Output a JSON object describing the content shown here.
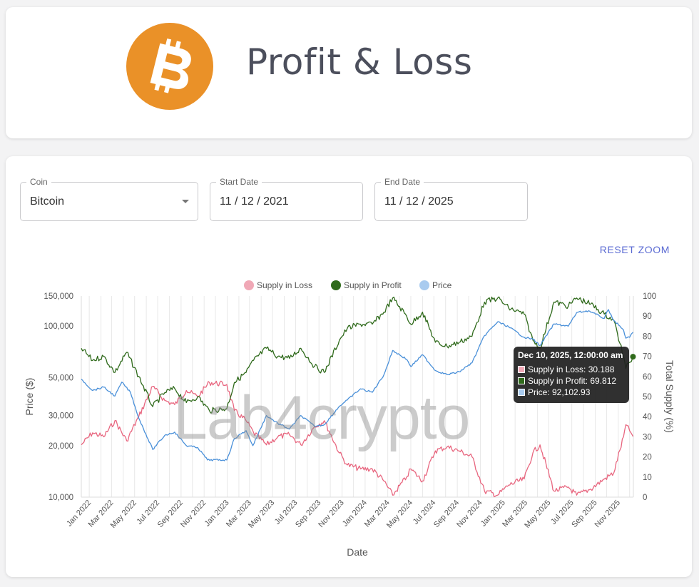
{
  "header": {
    "title": "Profit & Loss",
    "logo_icon": "bitcoin-logo-icon",
    "logo_color": "#ea9128"
  },
  "filters": {
    "coin": {
      "label": "Coin",
      "value": "Bitcoin",
      "icon": "dropdown-arrow-icon"
    },
    "start_date": {
      "label": "Start Date",
      "value": "11 / 12 / 2021"
    },
    "end_date": {
      "label": "End Date",
      "value": "11 / 12 / 2025"
    }
  },
  "reset_zoom_label": "RESET ZOOM",
  "watermark": "Lab4crypto",
  "tooltip": {
    "title": "Dec 10, 2025, 12:00:00 am",
    "rows": [
      "Supply in Loss: 30.188",
      "Supply in Profit: 69.812",
      "Price: 92,102.93"
    ]
  },
  "chart_data": {
    "type": "line",
    "xlabel": "Date",
    "ylabel_left": "Price ($)",
    "ylabel_right": "Total Supply (%)",
    "x_ticks": [
      "Jan 2022",
      "Mar 2022",
      "May 2022",
      "Jul 2022",
      "Sep 2022",
      "Nov 2022",
      "Jan 2023",
      "Mar 2023",
      "May 2023",
      "Jul 2023",
      "Sep 2023",
      "Nov 2023",
      "Jan 2024",
      "Mar 2024",
      "May 2024",
      "Jul 2024",
      "Sep 2024",
      "Nov 2024",
      "Jan 2025",
      "Mar 2025",
      "May 2025",
      "Jul 2025",
      "Sep 2025",
      "Nov 2025"
    ],
    "x_range": [
      "2021-12-11",
      "2025-12-11"
    ],
    "y_left_scale": "log",
    "y_left_range": [
      10000,
      150000
    ],
    "y_left_ticks": [
      {
        "v": 10000,
        "label": "10,000"
      },
      {
        "v": 20000,
        "label": "20,000"
      },
      {
        "v": 30000,
        "label": "30,000"
      },
      {
        "v": 50000,
        "label": "50,000"
      },
      {
        "v": 100000,
        "label": "100,000"
      },
      {
        "v": 150000,
        "label": "150,000"
      }
    ],
    "y_right_range": [
      0,
      100
    ],
    "y_right_ticks": [
      0,
      10,
      20,
      30,
      40,
      50,
      60,
      70,
      80,
      90,
      100
    ],
    "legend_position": "top",
    "grid": "vertical",
    "series": [
      {
        "name": "Supply in Loss",
        "color": "#e8667f",
        "legend_color": "#f0a8b6",
        "axis": "right",
        "points": [
          [
            "2021-12-11",
            26
          ],
          [
            "2022-01-10",
            32
          ],
          [
            "2022-02-08",
            30
          ],
          [
            "2022-03-10",
            38
          ],
          [
            "2022-04-10",
            28
          ],
          [
            "2022-05-12",
            40
          ],
          [
            "2022-06-18",
            55
          ],
          [
            "2022-07-20",
            48
          ],
          [
            "2022-08-15",
            46
          ],
          [
            "2022-09-15",
            53
          ],
          [
            "2022-10-15",
            50
          ],
          [
            "2022-11-15",
            57
          ],
          [
            "2022-12-31",
            56
          ],
          [
            "2023-01-20",
            43
          ],
          [
            "2023-02-20",
            38
          ],
          [
            "2023-03-12",
            32
          ],
          [
            "2023-04-15",
            26
          ],
          [
            "2023-05-15",
            30
          ],
          [
            "2023-06-15",
            31
          ],
          [
            "2023-07-15",
            26
          ],
          [
            "2023-08-20",
            35
          ],
          [
            "2023-09-15",
            38
          ],
          [
            "2023-10-25",
            22
          ],
          [
            "2023-11-15",
            16
          ],
          [
            "2023-12-20",
            14
          ],
          [
            "2024-01-20",
            14
          ],
          [
            "2024-02-20",
            8
          ],
          [
            "2024-03-14",
            1
          ],
          [
            "2024-04-20",
            10
          ],
          [
            "2024-05-01",
            14
          ],
          [
            "2024-06-01",
            8
          ],
          [
            "2024-07-05",
            23
          ],
          [
            "2024-08-05",
            25
          ],
          [
            "2024-09-06",
            23
          ],
          [
            "2024-10-10",
            20
          ],
          [
            "2024-11-12",
            3
          ],
          [
            "2024-12-17",
            1
          ],
          [
            "2025-01-15",
            6
          ],
          [
            "2025-02-25",
            9
          ],
          [
            "2025-03-20",
            22
          ],
          [
            "2025-04-08",
            26
          ],
          [
            "2025-05-15",
            3
          ],
          [
            "2025-06-22",
            5
          ],
          [
            "2025-07-14",
            1
          ],
          [
            "2025-08-20",
            4
          ],
          [
            "2025-09-25",
            9
          ],
          [
            "2025-10-20",
            12
          ],
          [
            "2025-11-15",
            30
          ],
          [
            "2025-11-21",
            36
          ],
          [
            "2025-12-01",
            33
          ],
          [
            "2025-12-10",
            30.188
          ]
        ]
      },
      {
        "name": "Supply in Profit",
        "color": "#2f6a1b",
        "legend_color": "#2f6a1b",
        "axis": "right",
        "points": [
          [
            "2021-12-11",
            74
          ],
          [
            "2022-01-10",
            68
          ],
          [
            "2022-02-08",
            70
          ],
          [
            "2022-03-10",
            62
          ],
          [
            "2022-04-10",
            72
          ],
          [
            "2022-05-12",
            60
          ],
          [
            "2022-06-18",
            45
          ],
          [
            "2022-07-20",
            52
          ],
          [
            "2022-08-15",
            54
          ],
          [
            "2022-09-15",
            47
          ],
          [
            "2022-10-15",
            50
          ],
          [
            "2022-11-15",
            43
          ],
          [
            "2022-12-31",
            44
          ],
          [
            "2023-01-20",
            57
          ],
          [
            "2023-02-20",
            62
          ],
          [
            "2023-03-12",
            68
          ],
          [
            "2023-04-15",
            74
          ],
          [
            "2023-05-15",
            70
          ],
          [
            "2023-06-15",
            69
          ],
          [
            "2023-07-15",
            74
          ],
          [
            "2023-08-20",
            65
          ],
          [
            "2023-09-15",
            62
          ],
          [
            "2023-10-25",
            78
          ],
          [
            "2023-11-15",
            84
          ],
          [
            "2023-12-20",
            86
          ],
          [
            "2024-01-20",
            86
          ],
          [
            "2024-02-20",
            92
          ],
          [
            "2024-03-14",
            99
          ],
          [
            "2024-04-20",
            90
          ],
          [
            "2024-05-01",
            86
          ],
          [
            "2024-06-01",
            92
          ],
          [
            "2024-07-05",
            77
          ],
          [
            "2024-08-05",
            75
          ],
          [
            "2024-09-06",
            77
          ],
          [
            "2024-10-10",
            80
          ],
          [
            "2024-11-12",
            97
          ],
          [
            "2024-12-17",
            99
          ],
          [
            "2025-01-15",
            94
          ],
          [
            "2025-02-25",
            91
          ],
          [
            "2025-03-20",
            78
          ],
          [
            "2025-04-08",
            74
          ],
          [
            "2025-05-15",
            97
          ],
          [
            "2025-06-22",
            95
          ],
          [
            "2025-07-14",
            99
          ],
          [
            "2025-08-20",
            96
          ],
          [
            "2025-09-25",
            91
          ],
          [
            "2025-10-20",
            88
          ],
          [
            "2025-11-15",
            70
          ],
          [
            "2025-11-21",
            64
          ],
          [
            "2025-12-01",
            67
          ],
          [
            "2025-12-10",
            69.812
          ]
        ]
      },
      {
        "name": "Price",
        "color": "#4a90d9",
        "legend_color": "#a9cbef",
        "axis": "left",
        "points": [
          [
            "2021-12-11",
            49000
          ],
          [
            "2022-01-10",
            42000
          ],
          [
            "2022-02-08",
            44000
          ],
          [
            "2022-03-10",
            39000
          ],
          [
            "2022-03-28",
            47000
          ],
          [
            "2022-04-20",
            41000
          ],
          [
            "2022-05-12",
            29000
          ],
          [
            "2022-06-18",
            19000
          ],
          [
            "2022-07-20",
            23000
          ],
          [
            "2022-08-15",
            24000
          ],
          [
            "2022-09-15",
            20000
          ],
          [
            "2022-10-15",
            19500
          ],
          [
            "2022-11-10",
            16500
          ],
          [
            "2022-12-31",
            16500
          ],
          [
            "2023-01-20",
            22000
          ],
          [
            "2023-02-20",
            24500
          ],
          [
            "2023-03-10",
            20000
          ],
          [
            "2023-04-15",
            30000
          ],
          [
            "2023-05-15",
            27000
          ],
          [
            "2023-06-15",
            25000
          ],
          [
            "2023-07-15",
            30000
          ],
          [
            "2023-08-20",
            26000
          ],
          [
            "2023-09-15",
            26500
          ],
          [
            "2023-10-25",
            34000
          ],
          [
            "2023-11-15",
            37000
          ],
          [
            "2023-12-20",
            43000
          ],
          [
            "2024-01-20",
            41000
          ],
          [
            "2024-02-20",
            52000
          ],
          [
            "2024-03-14",
            72000
          ],
          [
            "2024-04-20",
            64000
          ],
          [
            "2024-05-01",
            58000
          ],
          [
            "2024-06-01",
            68000
          ],
          [
            "2024-07-05",
            55000
          ],
          [
            "2024-08-05",
            52000
          ],
          [
            "2024-09-06",
            54000
          ],
          [
            "2024-10-10",
            61000
          ],
          [
            "2024-11-12",
            88000
          ],
          [
            "2024-12-17",
            106000
          ],
          [
            "2025-01-15",
            99000
          ],
          [
            "2025-02-25",
            86000
          ],
          [
            "2025-03-20",
            84000
          ],
          [
            "2025-04-08",
            77000
          ],
          [
            "2025-05-15",
            103000
          ],
          [
            "2025-06-22",
            100000
          ],
          [
            "2025-07-14",
            120000
          ],
          [
            "2025-08-14",
            123000
          ],
          [
            "2025-09-25",
            111000
          ],
          [
            "2025-10-06",
            125000
          ],
          [
            "2025-10-20",
            108000
          ],
          [
            "2025-11-15",
            95000
          ],
          [
            "2025-11-21",
            85000
          ],
          [
            "2025-12-01",
            86000
          ],
          [
            "2025-12-10",
            92102.93
          ]
        ]
      }
    ]
  }
}
